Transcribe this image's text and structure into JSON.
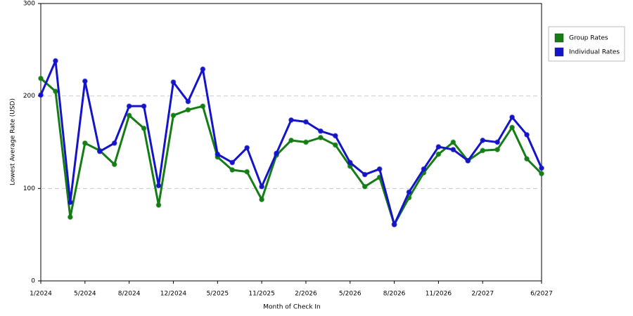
{
  "chart_data": {
    "type": "line",
    "x_label": "Month of Check In",
    "y_label": "Lowest Average Rate (USD)",
    "categories": [
      "1/2024",
      null,
      null,
      "5/2024",
      null,
      null,
      "8/2024",
      null,
      null,
      "12/2024",
      null,
      null,
      "5/2025",
      null,
      null,
      "11/2025",
      null,
      null,
      "2/2026",
      null,
      null,
      "5/2026",
      null,
      null,
      "8/2026",
      null,
      null,
      "11/2026",
      null,
      null,
      "2/2027",
      null,
      null,
      null,
      "6/2027"
    ],
    "series": [
      {
        "name": "Group Rates",
        "color": "#157d15",
        "values": [
          219,
          205,
          69,
          149,
          141,
          126,
          179,
          165,
          82,
          179,
          185,
          189,
          134,
          120,
          118,
          88,
          136,
          152,
          150,
          155,
          147,
          124,
          102,
          112,
          61,
          90,
          117,
          137,
          150,
          130,
          141,
          142,
          166,
          132,
          116
        ]
      },
      {
        "name": "Individual Rates",
        "color": "#1414c8",
        "values": [
          201,
          238,
          85,
          216,
          140,
          149,
          189,
          189,
          103,
          215,
          194,
          229,
          137,
          128,
          144,
          102,
          138,
          174,
          172,
          162,
          157,
          128,
          115,
          121,
          61,
          96,
          121,
          145,
          142,
          130,
          152,
          150,
          177,
          158,
          122
        ]
      }
    ],
    "ylim": [
      0,
      300
    ],
    "yticks": [
      0,
      100,
      200,
      300
    ],
    "grid": true,
    "legend": "right"
  }
}
